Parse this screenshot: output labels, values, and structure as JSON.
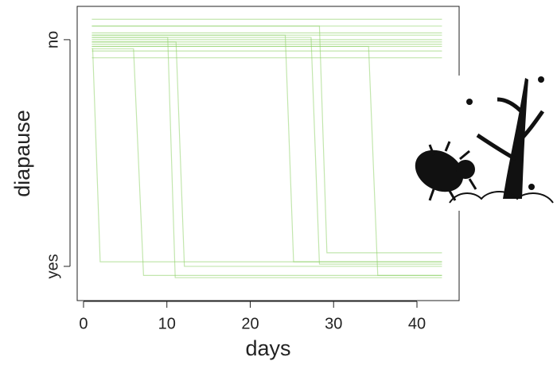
{
  "chart_data": {
    "type": "line",
    "xlabel": "days",
    "ylabel": "diapause",
    "xlim": [
      -0.76,
      45.06
    ],
    "ylim": [
      -0.151,
      1.147
    ],
    "xticks": [
      0,
      10,
      20,
      30,
      40
    ],
    "yticks": [
      {
        "value": 1,
        "label": "no"
      },
      {
        "value": 0,
        "label": "yes"
      }
    ],
    "color": "#8fd16a",
    "series": [
      {
        "x": [
          1,
          43
        ],
        "values": [
          1.09,
          1.09
        ]
      },
      {
        "x": [
          1,
          43
        ],
        "values": [
          1.06,
          1.06
        ]
      },
      {
        "x": [
          1,
          43
        ],
        "values": [
          1.03,
          1.03
        ]
      },
      {
        "x": [
          1,
          43
        ],
        "values": [
          1.02,
          1.02
        ]
      },
      {
        "x": [
          1,
          43
        ],
        "values": [
          1.0,
          1.0
        ]
      },
      {
        "x": [
          1,
          43
        ],
        "values": [
          0.99,
          0.99
        ]
      },
      {
        "x": [
          1,
          43
        ],
        "values": [
          0.98,
          0.98
        ]
      },
      {
        "x": [
          1,
          43
        ],
        "values": [
          0.97,
          0.97
        ]
      },
      {
        "x": [
          1,
          43
        ],
        "values": [
          0.95,
          0.95
        ]
      },
      {
        "x": [
          1,
          43
        ],
        "values": [
          0.92,
          0.92
        ]
      },
      {
        "x": [
          1,
          1.1,
          2,
          43
        ],
        "values": [
          0.96,
          0.96,
          0.02,
          0.02
        ]
      },
      {
        "x": [
          1,
          6,
          7.2,
          43
        ],
        "values": [
          0.96,
          0.96,
          -0.04,
          -0.04
        ]
      },
      {
        "x": [
          1,
          10.1,
          11,
          43
        ],
        "values": [
          1.01,
          1.01,
          -0.05,
          -0.05
        ]
      },
      {
        "x": [
          1,
          11.1,
          12.1,
          43
        ],
        "values": [
          0.99,
          0.99,
          0.0,
          0.0
        ]
      },
      {
        "x": [
          1,
          24.2,
          25.2,
          43
        ],
        "values": [
          1.02,
          1.02,
          0.02,
          0.02
        ]
      },
      {
        "x": [
          1,
          27.3,
          28.3,
          43
        ],
        "values": [
          1.01,
          1.01,
          0.01,
          0.01
        ]
      },
      {
        "x": [
          1,
          28.3,
          29.2,
          43
        ],
        "values": [
          1.06,
          1.06,
          0.06,
          0.06
        ]
      },
      {
        "x": [
          1,
          34.2,
          35.3,
          43
        ],
        "values": [
          0.97,
          0.97,
          -0.04,
          -0.04
        ]
      }
    ]
  }
}
